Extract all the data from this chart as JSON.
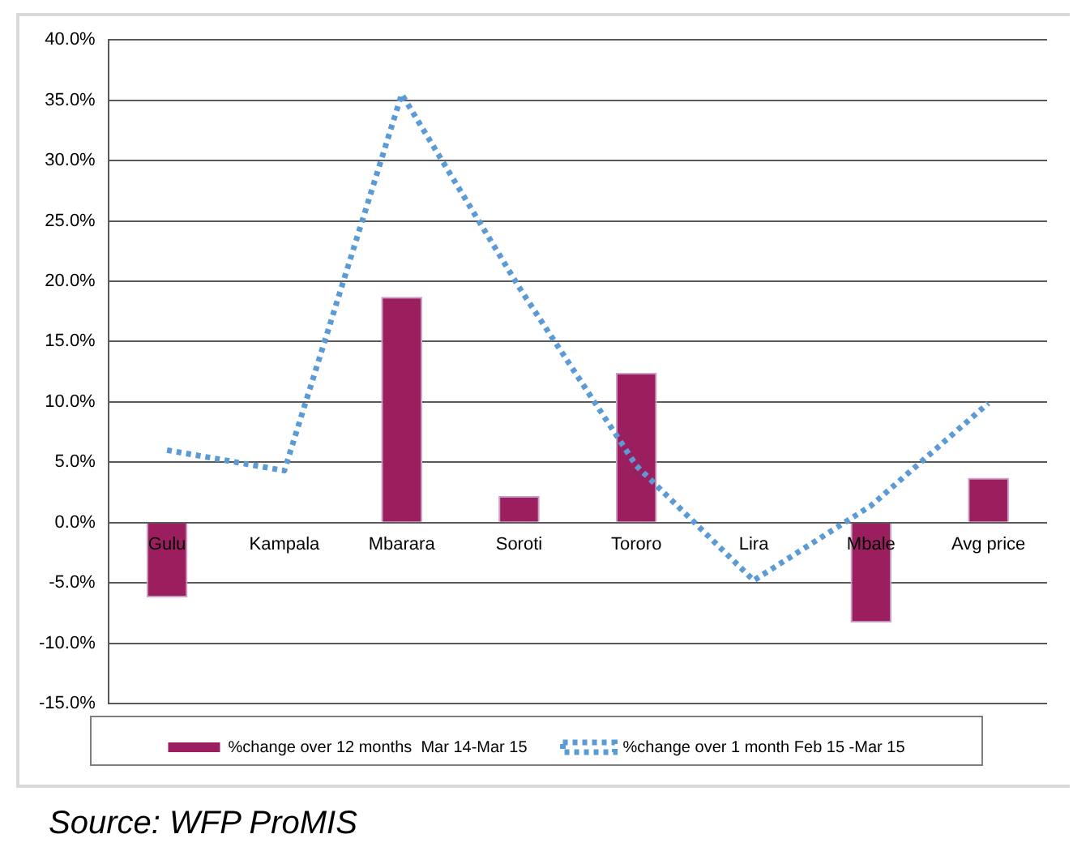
{
  "chart_data": {
    "type": "bar",
    "categories": [
      "Gulu",
      "Kampala",
      "Mbarara",
      "Soroti",
      "Tororo",
      "Lira",
      "Mbale",
      "Avg price"
    ],
    "series": [
      {
        "name": "%change over 12 months  Mar 14-Mar 15",
        "color": "#9b1f5e",
        "values": [
          -6.2,
          null,
          18.7,
          2.2,
          12.4,
          null,
          -8.3,
          3.7
        ]
      },
      {
        "name": "%change over 1 month Feb 15 -Mar 15",
        "type": "line",
        "color": "#5b9bd5",
        "line_style": "dotted",
        "marker": "none",
        "values": [
          6.0,
          4.3,
          35.5,
          19.5,
          4.7,
          -4.8,
          1.4,
          9.9
        ]
      }
    ],
    "ylim": [
      -15,
      40
    ],
    "yticks": [
      {
        "value": -15,
        "label": "-15.0%"
      },
      {
        "value": -10,
        "label": "-10.0%"
      },
      {
        "value": -5,
        "label": "-5.0%"
      },
      {
        "value": 0,
        "label": "0.0%"
      },
      {
        "value": 5,
        "label": "5.0%"
      },
      {
        "value": 10,
        "label": "10.0%"
      },
      {
        "value": 15,
        "label": "15.0%"
      },
      {
        "value": 20,
        "label": "20.0%"
      },
      {
        "value": 25,
        "label": "25.0%"
      },
      {
        "value": 30,
        "label": "30.0%"
      },
      {
        "value": 35,
        "label": "35.0%"
      },
      {
        "value": 40,
        "label": "40.0%"
      }
    ],
    "grid": "y",
    "legend": "bottom",
    "annotations": [
      "Source: WFP ProMIS"
    ]
  }
}
